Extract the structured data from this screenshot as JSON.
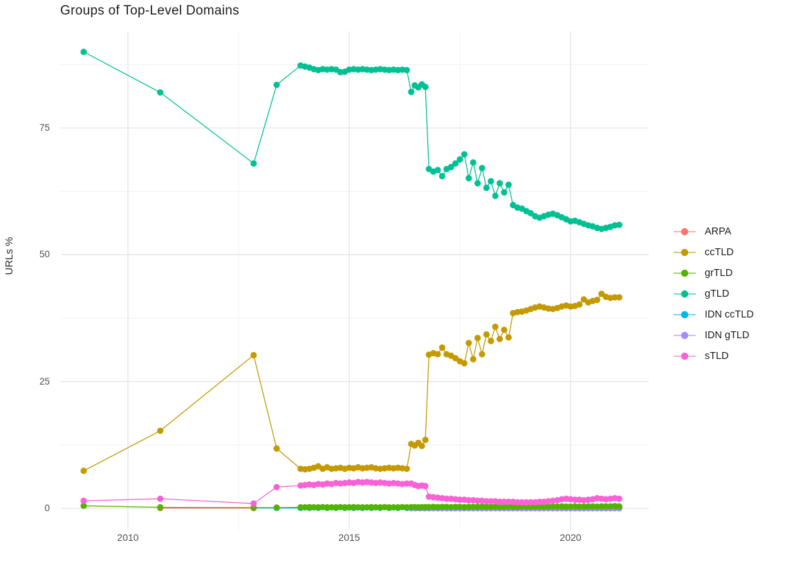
{
  "page_title": "Groups of Top-Level Domains",
  "chart_data": {
    "type": "line",
    "title": "Groups of Top-Level Domains",
    "xlabel": "",
    "ylabel": "URLs %",
    "grid": true,
    "legend_position": "right",
    "xlim": [
      2008.5,
      2021.8
    ],
    "ylim": [
      -4,
      94
    ],
    "x_ticks": [
      2010,
      2015,
      2020
    ],
    "x_tick_labels": [
      "2010",
      "2015",
      "2020"
    ],
    "x_minor_ticks": [
      2012.5,
      2017.5
    ],
    "y_ticks": [
      0,
      25,
      50,
      75
    ],
    "y_tick_labels": [
      "0",
      "25",
      "50",
      "75"
    ],
    "y_minor_ticks": [
      12.5,
      37.5,
      62.5,
      87.5
    ],
    "series": [
      {
        "name": "ARPA",
        "color": "#F8766D",
        "x": [
          2010.73,
          2012.84
        ],
        "y": [
          0.05,
          0.05
        ]
      },
      {
        "name": "ccTLD",
        "color": "#C49A00",
        "x": [
          2009,
          2010.73,
          2012.84,
          2013.36,
          2013.9,
          2014.0,
          2014.1,
          2014.2,
          2014.3,
          2014.4,
          2014.5,
          2014.6,
          2014.7,
          2014.8,
          2014.9,
          2015.0,
          2015.1,
          2015.2,
          2015.3,
          2015.4,
          2015.5,
          2015.6,
          2015.7,
          2015.8,
          2015.9,
          2016.0,
          2016.1,
          2016.2,
          2016.3,
          2016.4,
          2016.48,
          2016.56,
          2016.64,
          2016.72,
          2016.8,
          2016.9,
          2017.0,
          2017.1,
          2017.2,
          2017.3,
          2017.4,
          2017.5,
          2017.6,
          2017.7,
          2017.8,
          2017.9,
          2018.0,
          2018.1,
          2018.2,
          2018.3,
          2018.4,
          2018.5,
          2018.6,
          2018.7,
          2018.8,
          2018.9,
          2019.0,
          2019.1,
          2019.2,
          2019.3,
          2019.4,
          2019.5,
          2019.6,
          2019.7,
          2019.8,
          2019.9,
          2020.0,
          2020.1,
          2020.2,
          2020.3,
          2020.4,
          2020.5,
          2020.6,
          2020.7,
          2020.8,
          2020.9,
          2021.0,
          2021.1
        ],
        "y": [
          7.4,
          15.3,
          30.2,
          11.8,
          7.8,
          7.7,
          7.8,
          8.0,
          8.3,
          7.8,
          8.1,
          7.8,
          7.9,
          8.0,
          7.8,
          8.0,
          7.9,
          8.1,
          7.9,
          8.0,
          8.1,
          7.9,
          7.8,
          7.9,
          8.0,
          7.9,
          8.0,
          7.9,
          7.8,
          12.7,
          12.4,
          12.9,
          12.3,
          13.5,
          30.3,
          30.6,
          30.4,
          31.7,
          30.4,
          30.1,
          29.6,
          29.0,
          28.6,
          32.6,
          29.4,
          33.6,
          30.4,
          34.3,
          33.0,
          35.8,
          33.4,
          35.2,
          33.7,
          38.5,
          38.7,
          38.8,
          39.0,
          39.3,
          39.6,
          39.8,
          39.6,
          39.4,
          39.3,
          39.5,
          39.8,
          40.0,
          39.8,
          39.9,
          40.2,
          41.2,
          40.6,
          40.9,
          41.1,
          42.3,
          41.7,
          41.5,
          41.6,
          41.6
        ]
      },
      {
        "name": "grTLD",
        "color": "#53B400",
        "x": [
          2009,
          2010.73,
          2012.84,
          2013.36,
          2013.9,
          2014.0,
          2014.1,
          2014.2,
          2014.3,
          2014.4,
          2014.5,
          2014.6,
          2014.7,
          2014.8,
          2014.9,
          2015.0,
          2015.1,
          2015.2,
          2015.3,
          2015.4,
          2015.5,
          2015.6,
          2015.7,
          2015.8,
          2015.9,
          2016.0,
          2016.1,
          2016.2,
          2016.3,
          2016.4,
          2016.48,
          2016.56,
          2016.64,
          2016.72,
          2016.8,
          2016.9,
          2017.0,
          2017.1,
          2017.2,
          2017.3,
          2017.4,
          2017.5,
          2017.6,
          2017.7,
          2017.8,
          2017.9,
          2018.0,
          2018.1,
          2018.2,
          2018.3,
          2018.4,
          2018.5,
          2018.6,
          2018.7,
          2018.8,
          2018.9,
          2019.0,
          2019.1,
          2019.2,
          2019.3,
          2019.4,
          2019.5,
          2019.6,
          2019.7,
          2019.8,
          2019.9,
          2020.0,
          2020.1,
          2020.2,
          2020.3,
          2020.4,
          2020.5,
          2020.6,
          2020.7,
          2020.8,
          2020.9,
          2021.0,
          2021.1
        ],
        "y": [
          0.5,
          0.2,
          0.15,
          0.15,
          0.2,
          0.2,
          0.25,
          0.2,
          0.2,
          0.25,
          0.2,
          0.2,
          0.2,
          0.25,
          0.2,
          0.2,
          0.25,
          0.2,
          0.2,
          0.2,
          0.25,
          0.2,
          0.2,
          0.25,
          0.2,
          0.2,
          0.2,
          0.25,
          0.2,
          0.25,
          0.25,
          0.2,
          0.25,
          0.25,
          0.25,
          0.3,
          0.25,
          0.3,
          0.3,
          0.25,
          0.3,
          0.3,
          0.25,
          0.3,
          0.3,
          0.3,
          0.35,
          0.3,
          0.3,
          0.35,
          0.3,
          0.3,
          0.35,
          0.3,
          0.3,
          0.35,
          0.35,
          0.3,
          0.35,
          0.35,
          0.3,
          0.35,
          0.35,
          0.35,
          0.4,
          0.35,
          0.35,
          0.4,
          0.35,
          0.35,
          0.4,
          0.4,
          0.35,
          0.4,
          0.4,
          0.4,
          0.45,
          0.4
        ]
      },
      {
        "name": "gTLD",
        "color": "#00C094",
        "x": [
          2009,
          2010.73,
          2012.84,
          2013.36,
          2013.9,
          2014.0,
          2014.1,
          2014.2,
          2014.3,
          2014.4,
          2014.5,
          2014.6,
          2014.7,
          2014.8,
          2014.9,
          2015.0,
          2015.1,
          2015.2,
          2015.3,
          2015.4,
          2015.5,
          2015.6,
          2015.7,
          2015.8,
          2015.9,
          2016.0,
          2016.1,
          2016.2,
          2016.3,
          2016.4,
          2016.48,
          2016.56,
          2016.64,
          2016.72,
          2016.8,
          2016.9,
          2017.0,
          2017.1,
          2017.2,
          2017.3,
          2017.4,
          2017.5,
          2017.6,
          2017.7,
          2017.8,
          2017.9,
          2018.0,
          2018.1,
          2018.2,
          2018.3,
          2018.4,
          2018.5,
          2018.6,
          2018.7,
          2018.8,
          2018.9,
          2019.0,
          2019.1,
          2019.2,
          2019.3,
          2019.4,
          2019.5,
          2019.6,
          2019.7,
          2019.8,
          2019.9,
          2020.0,
          2020.1,
          2020.2,
          2020.3,
          2020.4,
          2020.5,
          2020.6,
          2020.7,
          2020.8,
          2020.9,
          2021.0,
          2021.1
        ],
        "y": [
          90.0,
          82.0,
          68.0,
          83.5,
          87.3,
          87.1,
          86.9,
          86.6,
          86.4,
          86.6,
          86.5,
          86.6,
          86.5,
          86.0,
          86.1,
          86.5,
          86.6,
          86.5,
          86.6,
          86.5,
          86.4,
          86.5,
          86.6,
          86.5,
          86.4,
          86.5,
          86.4,
          86.5,
          86.4,
          82.1,
          83.4,
          83.0,
          83.6,
          83.1,
          66.9,
          66.4,
          66.7,
          65.5,
          66.9,
          67.3,
          68.0,
          68.8,
          69.8,
          65.1,
          68.2,
          64.1,
          67.1,
          63.2,
          64.5,
          61.6,
          64.1,
          62.3,
          63.8,
          59.8,
          59.3,
          59.1,
          58.6,
          58.2,
          57.6,
          57.3,
          57.6,
          57.9,
          58.1,
          57.8,
          57.4,
          57.0,
          56.6,
          56.7,
          56.4,
          56.1,
          55.8,
          55.6,
          55.3,
          55.1,
          55.3,
          55.5,
          55.8,
          55.9
        ]
      },
      {
        "name": "IDN ccTLD",
        "color": "#00B6EB",
        "x": [
          2012.84,
          2013.36,
          2013.9,
          2014.1,
          2014.3,
          2014.5,
          2014.7,
          2014.9,
          2015.1,
          2015.3,
          2015.5,
          2015.7,
          2015.9,
          2016.1,
          2016.3,
          2016.5,
          2016.7,
          2016.9,
          2017.1,
          2017.3,
          2017.5,
          2017.7,
          2017.9,
          2018.1,
          2018.3,
          2018.5,
          2018.7,
          2018.9,
          2019.1,
          2019.3,
          2019.5,
          2019.7,
          2019.9,
          2020.1,
          2020.3,
          2020.5,
          2020.7,
          2020.9,
          2021.1
        ],
        "y": [
          0.08,
          0.08,
          0.08,
          0.08,
          0.08,
          0.08,
          0.08,
          0.08,
          0.08,
          0.08,
          0.08,
          0.08,
          0.08,
          0.08,
          0.08,
          0.08,
          0.08,
          0.08,
          0.08,
          0.08,
          0.08,
          0.08,
          0.08,
          0.08,
          0.08,
          0.08,
          0.08,
          0.08,
          0.08,
          0.08,
          0.08,
          0.08,
          0.08,
          0.08,
          0.08,
          0.08,
          0.08,
          0.08,
          0.08
        ]
      },
      {
        "name": "IDN gTLD",
        "color": "#A58AFF",
        "x": [
          2016.4,
          2016.5,
          2016.6,
          2016.7,
          2016.8,
          2016.9,
          2017.0,
          2017.1,
          2017.2,
          2017.3,
          2017.4,
          2017.5,
          2017.6,
          2017.7,
          2017.8,
          2017.9,
          2018.0,
          2018.1,
          2018.2,
          2018.3,
          2018.4,
          2018.5,
          2018.6,
          2018.7,
          2018.8,
          2018.9,
          2019.0,
          2019.1,
          2019.2,
          2019.3,
          2019.4,
          2019.5,
          2019.6,
          2019.7,
          2019.8,
          2019.9,
          2020.0,
          2020.1,
          2020.2,
          2020.3,
          2020.4,
          2020.5,
          2020.6,
          2020.7,
          2020.8,
          2020.9,
          2021.0,
          2021.1
        ],
        "y": [
          0.02,
          0.02,
          0.02,
          0.02,
          0.02,
          0.02,
          0.02,
          0.02,
          0.02,
          0.02,
          0.02,
          0.02,
          0.02,
          0.02,
          0.02,
          0.02,
          0.02,
          0.02,
          0.02,
          0.02,
          0.02,
          0.02,
          0.02,
          0.02,
          0.02,
          0.02,
          0.02,
          0.02,
          0.02,
          0.02,
          0.02,
          0.02,
          0.02,
          0.02,
          0.02,
          0.02,
          0.02,
          0.02,
          0.02,
          0.02,
          0.02,
          0.02,
          0.02,
          0.02,
          0.02,
          0.02,
          0.02,
          0.02
        ]
      },
      {
        "name": "sTLD",
        "color": "#FB61D7",
        "x": [
          2009,
          2010.73,
          2012.84,
          2013.36,
          2013.9,
          2014.0,
          2014.1,
          2014.2,
          2014.3,
          2014.4,
          2014.5,
          2014.6,
          2014.7,
          2014.8,
          2014.9,
          2015.0,
          2015.1,
          2015.2,
          2015.3,
          2015.4,
          2015.5,
          2015.6,
          2015.7,
          2015.8,
          2015.9,
          2016.0,
          2016.1,
          2016.2,
          2016.3,
          2016.4,
          2016.48,
          2016.56,
          2016.64,
          2016.72,
          2016.8,
          2016.9,
          2017.0,
          2017.1,
          2017.2,
          2017.3,
          2017.4,
          2017.5,
          2017.6,
          2017.7,
          2017.8,
          2017.9,
          2018.0,
          2018.1,
          2018.2,
          2018.3,
          2018.4,
          2018.5,
          2018.6,
          2018.7,
          2018.8,
          2018.9,
          2019.0,
          2019.1,
          2019.2,
          2019.3,
          2019.4,
          2019.5,
          2019.6,
          2019.7,
          2019.8,
          2019.9,
          2020.0,
          2020.1,
          2020.2,
          2020.3,
          2020.4,
          2020.5,
          2020.6,
          2020.7,
          2020.8,
          2020.9,
          2021.0,
          2021.1
        ],
        "y": [
          1.5,
          1.9,
          0.95,
          4.2,
          4.5,
          4.6,
          4.7,
          4.6,
          4.8,
          4.7,
          4.9,
          4.8,
          5.0,
          4.9,
          5.0,
          5.1,
          5.0,
          5.2,
          5.1,
          5.2,
          5.1,
          5.0,
          5.1,
          5.0,
          4.9,
          5.0,
          4.9,
          4.8,
          4.9,
          4.9,
          4.6,
          4.4,
          4.5,
          4.4,
          2.3,
          2.2,
          2.1,
          2.0,
          1.9,
          1.9,
          1.8,
          1.7,
          1.7,
          1.6,
          1.6,
          1.5,
          1.5,
          1.4,
          1.4,
          1.4,
          1.3,
          1.3,
          1.3,
          1.3,
          1.2,
          1.2,
          1.2,
          1.2,
          1.2,
          1.3,
          1.3,
          1.4,
          1.5,
          1.6,
          1.8,
          1.9,
          1.8,
          1.7,
          1.7,
          1.6,
          1.7,
          1.8,
          2.0,
          1.9,
          1.8,
          1.9,
          2.0,
          1.9
        ]
      }
    ]
  }
}
